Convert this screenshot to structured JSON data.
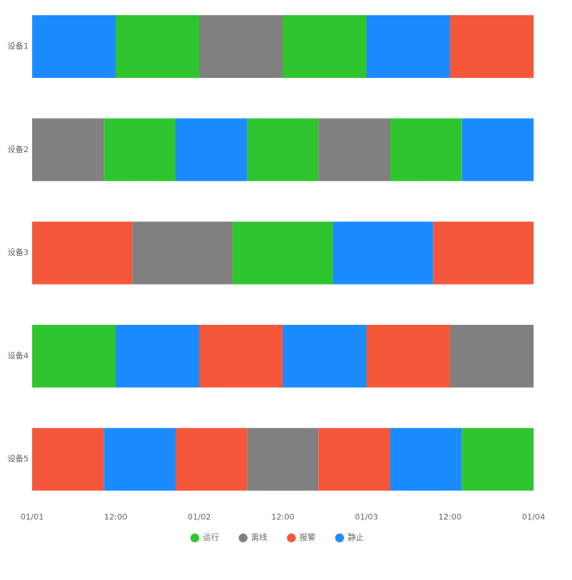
{
  "chart_data": {
    "type": "timeline",
    "statuses": [
      {
        "name": "运行",
        "color": "#2fc52f"
      },
      {
        "name": "离线",
        "color": "#808080"
      },
      {
        "name": "报警",
        "color": "#f5573b"
      },
      {
        "name": "静止",
        "color": "#1a8cff"
      }
    ],
    "rows": [
      {
        "name": "设备1",
        "segments": [
          {
            "start": 0,
            "end": 12,
            "status": "静止"
          },
          {
            "start": 12,
            "end": 24,
            "status": "运行"
          },
          {
            "start": 24,
            "end": 36,
            "status": "离线"
          },
          {
            "start": 36,
            "end": 48,
            "status": "运行"
          },
          {
            "start": 48,
            "end": 60,
            "status": "静止"
          },
          {
            "start": 60,
            "end": 72,
            "status": "报警"
          }
        ]
      },
      {
        "name": "设备2",
        "segments": [
          {
            "start": 0,
            "end": 10.3,
            "status": "离线"
          },
          {
            "start": 10.3,
            "end": 20.6,
            "status": "运行"
          },
          {
            "start": 20.6,
            "end": 30.9,
            "status": "静止"
          },
          {
            "start": 30.9,
            "end": 41.1,
            "status": "运行"
          },
          {
            "start": 41.1,
            "end": 51.4,
            "status": "离线"
          },
          {
            "start": 51.4,
            "end": 61.7,
            "status": "运行"
          },
          {
            "start": 61.7,
            "end": 72,
            "status": "静止"
          }
        ]
      },
      {
        "name": "设备3",
        "segments": [
          {
            "start": 0,
            "end": 14.4,
            "status": "报警"
          },
          {
            "start": 14.4,
            "end": 28.8,
            "status": "离线"
          },
          {
            "start": 28.8,
            "end": 43.2,
            "status": "运行"
          },
          {
            "start": 43.2,
            "end": 57.6,
            "status": "静止"
          },
          {
            "start": 57.6,
            "end": 72,
            "status": "报警"
          }
        ]
      },
      {
        "name": "设备4",
        "segments": [
          {
            "start": 0,
            "end": 12,
            "status": "运行"
          },
          {
            "start": 12,
            "end": 24,
            "status": "静止"
          },
          {
            "start": 24,
            "end": 36,
            "status": "报警"
          },
          {
            "start": 36,
            "end": 48,
            "status": "静止"
          },
          {
            "start": 48,
            "end": 60,
            "status": "报警"
          },
          {
            "start": 60,
            "end": 72,
            "status": "离线"
          }
        ]
      },
      {
        "name": "设备5",
        "segments": [
          {
            "start": 0,
            "end": 10.3,
            "status": "报警"
          },
          {
            "start": 10.3,
            "end": 20.6,
            "status": "静止"
          },
          {
            "start": 20.6,
            "end": 30.9,
            "status": "报警"
          },
          {
            "start": 30.9,
            "end": 41.1,
            "status": "离线"
          },
          {
            "start": 41.1,
            "end": 51.4,
            "status": "报警"
          },
          {
            "start": 51.4,
            "end": 61.7,
            "status": "静止"
          },
          {
            "start": 61.7,
            "end": 72,
            "status": "运行"
          }
        ]
      }
    ],
    "xlim": [
      0,
      72
    ],
    "xticks": [
      {
        "value": 0,
        "label": "01/01"
      },
      {
        "value": 12,
        "label": "12:00"
      },
      {
        "value": 24,
        "label": "01/02"
      },
      {
        "value": 36,
        "label": "12:00"
      },
      {
        "value": 48,
        "label": "01/03"
      },
      {
        "value": 60,
        "label": "12:00"
      },
      {
        "value": 72,
        "label": "01/04"
      }
    ]
  }
}
